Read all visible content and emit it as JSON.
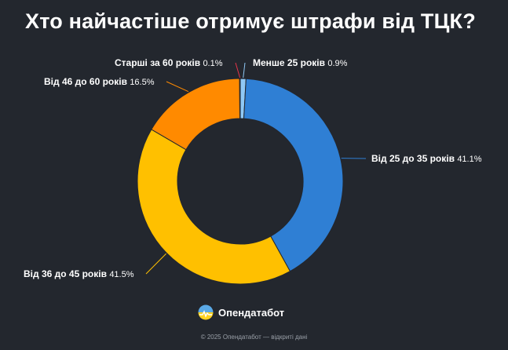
{
  "title": "Хто найчастіше отримує штрафи від ТЦК?",
  "logo_text": "Опендатабот",
  "footer": "© 2025 Опендатабот — відкриті дані",
  "chart_data": {
    "type": "pie",
    "style": "donut",
    "title": "Хто найчастіше отримує штрафи від ТЦК?",
    "unit": "%",
    "slices": [
      {
        "name": "Менше 25 років",
        "value": 0.9,
        "display": "0.9%",
        "color": "#8fc8f5"
      },
      {
        "name": "Від 25 до 35 років",
        "value": 41.1,
        "display": "41.1%",
        "color": "#2f7fd4"
      },
      {
        "name": "Від 36 до 45 років",
        "value": 41.5,
        "display": "41.5%",
        "color": "#ffc000"
      },
      {
        "name": "Від 46 до 60 років",
        "value": 16.5,
        "display": "16.5%",
        "color": "#ff8a00"
      },
      {
        "name": "Старші за 60 років",
        "value": 0.1,
        "display": "0.1%",
        "color": "#e8344a"
      }
    ]
  }
}
